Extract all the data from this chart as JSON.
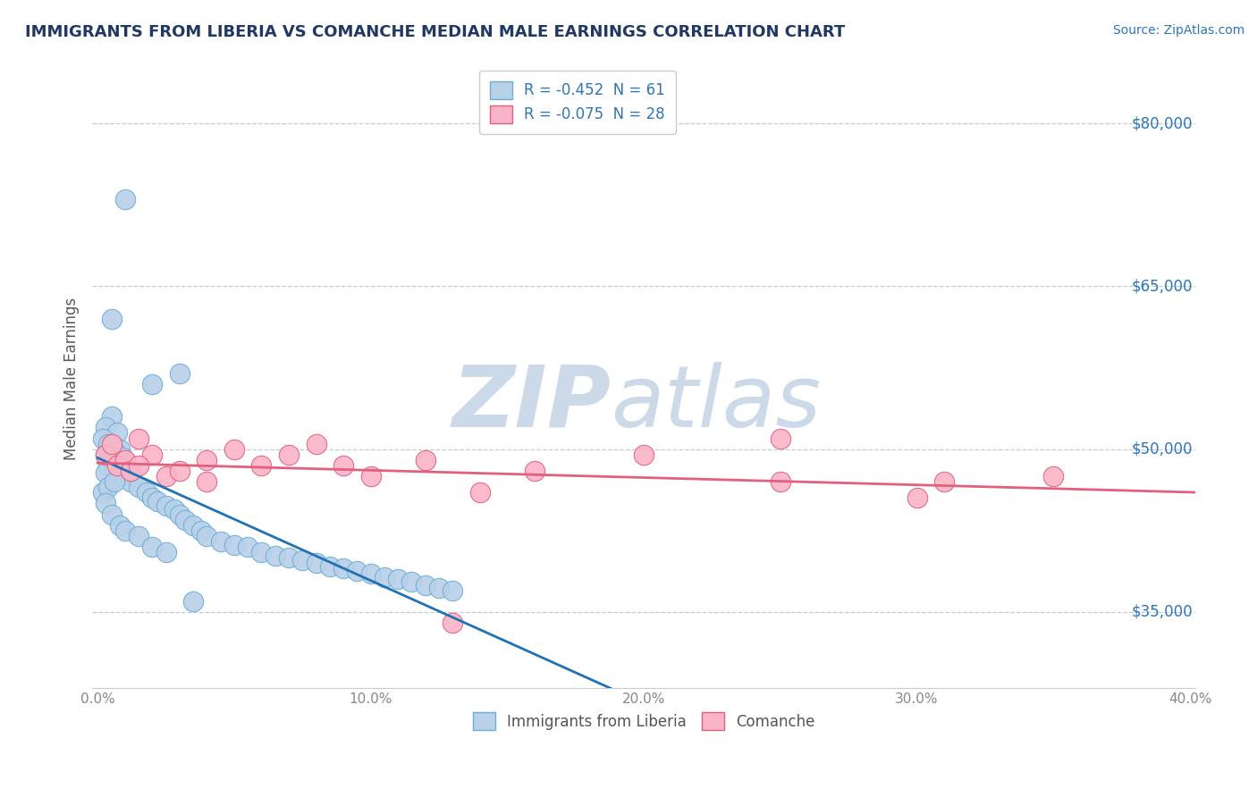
{
  "title": "IMMIGRANTS FROM LIBERIA VS COMANCHE MEDIAN MALE EARNINGS CORRELATION CHART",
  "source_text": "Source: ZipAtlas.com",
  "ylabel": "Median Male Earnings",
  "xlim": [
    -0.002,
    0.402
  ],
  "ylim": [
    28000,
    85000
  ],
  "yticks": [
    35000,
    50000,
    65000,
    80000
  ],
  "ytick_labels": [
    "$35,000",
    "$50,000",
    "$65,000",
    "$80,000"
  ],
  "xticks": [
    0.0,
    0.1,
    0.2,
    0.3,
    0.4
  ],
  "xtick_labels": [
    "0.0%",
    "10.0%",
    "20.0%",
    "30.0%",
    "40.0%"
  ],
  "liberia": {
    "name": "Immigrants from Liberia",
    "R": -0.452,
    "N": 61,
    "color": "#b8d0e8",
    "edge_color": "#6baed6",
    "trend_color": "#2171b5",
    "points_x": [
      0.01,
      0.005,
      0.03,
      0.02,
      0.005,
      0.003,
      0.007,
      0.002,
      0.004,
      0.008,
      0.006,
      0.003,
      0.009,
      0.005,
      0.007,
      0.004,
      0.006,
      0.01,
      0.003,
      0.008,
      0.012,
      0.015,
      0.018,
      0.02,
      0.022,
      0.025,
      0.028,
      0.03,
      0.032,
      0.035,
      0.038,
      0.04,
      0.045,
      0.05,
      0.055,
      0.06,
      0.065,
      0.07,
      0.075,
      0.08,
      0.085,
      0.09,
      0.095,
      0.1,
      0.105,
      0.11,
      0.115,
      0.12,
      0.125,
      0.13,
      0.002,
      0.004,
      0.006,
      0.003,
      0.005,
      0.008,
      0.01,
      0.015,
      0.02,
      0.025,
      0.035
    ],
    "points_y": [
      73000,
      62000,
      57000,
      56000,
      53000,
      52000,
      51500,
      51000,
      50500,
      50000,
      49800,
      49500,
      49200,
      49000,
      48800,
      48500,
      48200,
      48000,
      47800,
      47500,
      47000,
      46500,
      46000,
      45500,
      45200,
      44800,
      44500,
      44000,
      43500,
      43000,
      42500,
      42000,
      41500,
      41200,
      41000,
      40500,
      40200,
      40000,
      39800,
      39500,
      39200,
      39000,
      38800,
      38500,
      38200,
      38000,
      37800,
      37500,
      37200,
      37000,
      46000,
      46500,
      47000,
      45000,
      44000,
      43000,
      42500,
      42000,
      41000,
      40500,
      36000
    ]
  },
  "comanche": {
    "name": "Comanche",
    "R": -0.075,
    "N": 28,
    "color": "#fbb4c7",
    "edge_color": "#e0607e",
    "trend_color": "#e0607e",
    "points_x": [
      0.003,
      0.005,
      0.007,
      0.01,
      0.012,
      0.015,
      0.02,
      0.025,
      0.03,
      0.04,
      0.05,
      0.06,
      0.07,
      0.08,
      0.09,
      0.1,
      0.12,
      0.14,
      0.16,
      0.2,
      0.25,
      0.3,
      0.31,
      0.25,
      0.35,
      0.015,
      0.04,
      0.13
    ],
    "points_y": [
      49500,
      50500,
      48500,
      49000,
      48000,
      51000,
      49500,
      47500,
      48000,
      49000,
      50000,
      48500,
      49500,
      50500,
      48500,
      47500,
      49000,
      46000,
      48000,
      49500,
      47000,
      45500,
      47000,
      51000,
      47500,
      48500,
      47000,
      34000
    ]
  },
  "legend": {
    "liberia_label": "R = -0.452  N = 61",
    "comanche_label": "R = -0.075  N = 28"
  },
  "watermark": "ZIPatlas",
  "watermark_color": "#ccd9e8",
  "background_color": "#ffffff",
  "grid_color": "#c0ccd8",
  "title_color": "#1f3864",
  "axis_label_color": "#595959",
  "tick_color": "#2e75b6",
  "source_color": "#2e75b6"
}
